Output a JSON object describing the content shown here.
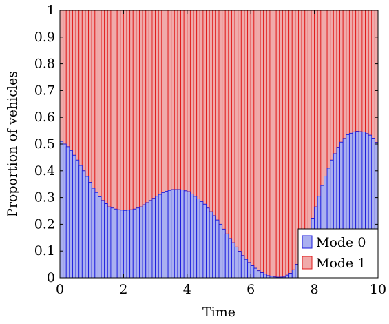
{
  "chart_data": {
    "type": "bar",
    "stacked": true,
    "xlabel": "Time",
    "ylabel": "Proportion of vehicles",
    "xlim": [
      0,
      10
    ],
    "ylim": [
      0,
      1
    ],
    "xticks": [
      "0",
      "2",
      "4",
      "6",
      "8",
      "10"
    ],
    "yticks": [
      "0",
      "0.1",
      "0.2",
      "0.3",
      "0.4",
      "0.5",
      "0.6",
      "0.7",
      "0.8",
      "0.9",
      "1"
    ],
    "legend_position": "bottom-right",
    "series": [
      {
        "name": "Mode 0",
        "fill": "#aab0f0",
        "stroke": "#1a1adc",
        "points": [
          [
            0.0,
            0.51
          ],
          [
            0.25,
            0.485
          ],
          [
            0.5,
            0.44
          ],
          [
            0.75,
            0.39
          ],
          [
            1.0,
            0.335
          ],
          [
            1.25,
            0.295
          ],
          [
            1.5,
            0.265
          ],
          [
            1.75,
            0.255
          ],
          [
            2.0,
            0.252
          ],
          [
            2.25,
            0.255
          ],
          [
            2.5,
            0.265
          ],
          [
            2.75,
            0.285
          ],
          [
            3.0,
            0.305
          ],
          [
            3.25,
            0.322
          ],
          [
            3.5,
            0.33
          ],
          [
            3.75,
            0.33
          ],
          [
            4.0,
            0.322
          ],
          [
            4.25,
            0.3
          ],
          [
            4.5,
            0.275
          ],
          [
            4.75,
            0.24
          ],
          [
            5.0,
            0.2
          ],
          [
            5.25,
            0.155
          ],
          [
            5.5,
            0.115
          ],
          [
            5.75,
            0.075
          ],
          [
            6.0,
            0.045
          ],
          [
            6.25,
            0.022
          ],
          [
            6.5,
            0.008
          ],
          [
            6.75,
            0.002
          ],
          [
            7.0,
            0.003
          ],
          [
            7.25,
            0.02
          ],
          [
            7.5,
            0.07
          ],
          [
            7.75,
            0.16
          ],
          [
            8.0,
            0.265
          ],
          [
            8.25,
            0.365
          ],
          [
            8.5,
            0.44
          ],
          [
            8.75,
            0.5
          ],
          [
            9.0,
            0.535
          ],
          [
            9.25,
            0.548
          ],
          [
            9.5,
            0.545
          ],
          [
            9.75,
            0.53
          ],
          [
            10.0,
            0.49
          ]
        ]
      },
      {
        "name": "Mode 1",
        "fill": "#f0aaaa",
        "stroke": "#e01818",
        "complement_of": "Mode 0"
      }
    ],
    "bar_count": 100
  }
}
